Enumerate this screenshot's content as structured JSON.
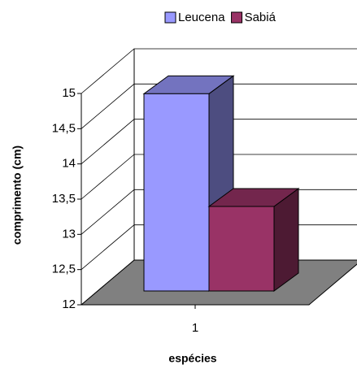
{
  "chart_data": {
    "type": "bar3d",
    "x_label": "espécies",
    "y_label": "comprimento (cm)",
    "categories": [
      "1"
    ],
    "series": [
      {
        "name": "Leucena",
        "color": "#9999ff",
        "values": [
          14.8
        ]
      },
      {
        "name": "Sabiá",
        "color": "#993366",
        "values": [
          13.2
        ]
      }
    ],
    "ylim": [
      12,
      15
    ],
    "yticks": [
      12,
      {
        "value": 12.5,
        "label": "12,5"
      },
      13,
      {
        "value": 13.5,
        "label": "13,5"
      },
      14,
      {
        "value": 14.5,
        "label": "14,5"
      },
      15
    ],
    "grid": true,
    "legend": "top"
  }
}
